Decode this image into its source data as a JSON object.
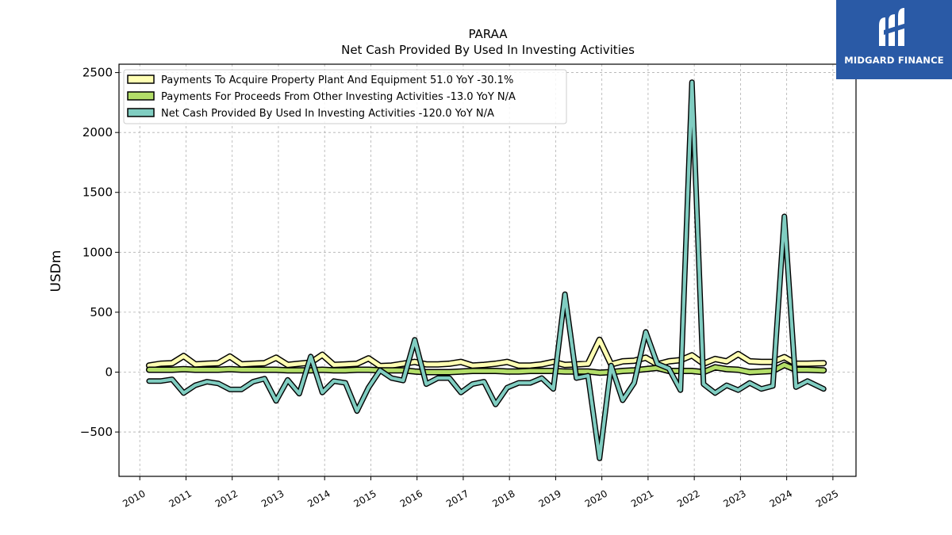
{
  "brand": {
    "name": "MIDGARD FINANCE",
    "bg": "#2a5aa6"
  },
  "chart_data": {
    "type": "line",
    "title": "PARAA",
    "subtitle": "Net Cash Provided By Used In Investing Activities",
    "ylabel": "USDm",
    "xlabel": "",
    "x_ticks": [
      "2010",
      "2011",
      "2012",
      "2013",
      "2014",
      "2015",
      "2016",
      "2017",
      "2018",
      "2019",
      "2020",
      "2021",
      "2022",
      "2023",
      "2024",
      "2025"
    ],
    "xlim": [
      2009.55,
      2025.5
    ],
    "ylim": [
      -870,
      2570
    ],
    "y_ticks": [
      -500,
      0,
      500,
      1000,
      1500,
      2000,
      2500
    ],
    "y_tick_labels": [
      "−500",
      "0",
      "500",
      "1000",
      "1500",
      "2000",
      "2500"
    ],
    "grid": true,
    "legend_position": "top-left",
    "x": [
      2010.2,
      2010.45,
      2010.7,
      2010.95,
      2011.2,
      2011.45,
      2011.7,
      2011.95,
      2012.2,
      2012.45,
      2012.7,
      2012.95,
      2013.2,
      2013.45,
      2013.7,
      2013.95,
      2014.2,
      2014.45,
      2014.7,
      2014.95,
      2015.2,
      2015.45,
      2015.7,
      2015.95,
      2016.2,
      2016.45,
      2016.7,
      2016.95,
      2017.2,
      2017.45,
      2017.7,
      2017.95,
      2018.2,
      2018.45,
      2018.7,
      2018.95,
      2019.2,
      2019.45,
      2019.7,
      2019.95,
      2020.2,
      2020.45,
      2020.7,
      2020.95,
      2021.2,
      2021.45,
      2021.7,
      2021.95,
      2022.2,
      2022.45,
      2022.7,
      2022.95,
      2023.2,
      2023.45,
      2023.7,
      2023.95,
      2024.2,
      2024.45,
      2024.8
    ],
    "series": [
      {
        "name": "Payments To Acquire Property Plant And Equipment  51.0 YoY -30.1%",
        "color": "#ffffb3",
        "values": [
          55,
          70,
          75,
          135,
          65,
          70,
          75,
          130,
          65,
          70,
          75,
          120,
          60,
          70,
          80,
          145,
          60,
          65,
          70,
          115,
          50,
          55,
          70,
          85,
          65,
          65,
          70,
          85,
          55,
          60,
          70,
          85,
          55,
          55,
          65,
          85,
          60,
          65,
          70,
          270,
          65,
          90,
          95,
          120,
          65,
          90,
          100,
          140,
          70,
          110,
          90,
          150,
          90,
          85,
          85,
          125,
          70,
          70,
          75
        ]
      },
      {
        "name": "Payments For Proceeds From Other Investing Activities  -13.0 YoY N/A",
        "color": "#b3de69",
        "values": [
          20,
          20,
          20,
          25,
          20,
          20,
          20,
          25,
          20,
          20,
          20,
          20,
          15,
          15,
          15,
          20,
          15,
          15,
          20,
          20,
          15,
          15,
          15,
          5,
          0,
          0,
          0,
          5,
          10,
          10,
          10,
          5,
          5,
          10,
          10,
          10,
          5,
          5,
          5,
          -5,
          0,
          10,
          15,
          25,
          35,
          10,
          10,
          10,
          0,
          40,
          25,
          20,
          0,
          5,
          10,
          60,
          20,
          20,
          15
        ]
      },
      {
        "name": "Net Cash Provided By Used In Investing Activities  -120.0 YoY N/A",
        "color": "#80cdc1",
        "values": [
          -75,
          -75,
          -60,
          -175,
          -110,
          -80,
          -95,
          -145,
          -145,
          -80,
          -55,
          -240,
          -65,
          -180,
          130,
          -170,
          -75,
          -90,
          -325,
          -130,
          15,
          -50,
          -70,
          270,
          -100,
          -50,
          -50,
          -170,
          -100,
          -80,
          -270,
          -130,
          -90,
          -90,
          -50,
          -140,
          650,
          -50,
          -30,
          -720,
          55,
          -235,
          -90,
          335,
          70,
          30,
          -150,
          2420,
          -100,
          -175,
          -110,
          -150,
          -90,
          -140,
          -115,
          1300,
          -125,
          -75,
          -140
        ]
      }
    ]
  }
}
